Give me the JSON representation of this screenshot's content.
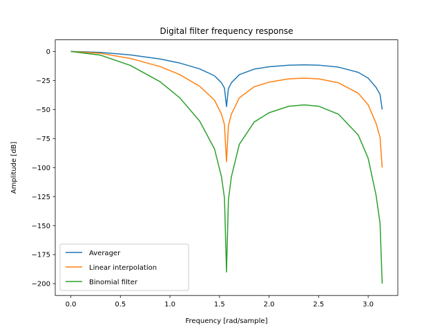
{
  "chart_data": {
    "type": "line",
    "title": "Digital filter frequency response",
    "xlabel": "Frequency [rad/sample]",
    "ylabel": "Amplitude [dB]",
    "xlim": [
      -0.157,
      3.299
    ],
    "ylim": [
      -210.2,
      10.0
    ],
    "xticks": [
      0.0,
      0.5,
      1.0,
      1.5,
      2.0,
      2.5,
      3.0
    ],
    "xtick_labels": [
      "0.0",
      "0.5",
      "1.0",
      "1.5",
      "2.0",
      "2.5",
      "3.0"
    ],
    "yticks": [
      0,
      -25,
      -50,
      -75,
      -100,
      -125,
      -150,
      -175,
      -200
    ],
    "ytick_labels": [
      "0",
      "−25",
      "−50",
      "−75",
      "−100",
      "−125",
      "−150",
      "−175",
      "−200"
    ],
    "grid": false,
    "legend_position": "lower-left",
    "series": [
      {
        "name": "Averager",
        "color": "#1f77b4",
        "x": [
          0.0,
          0.3,
          0.6,
          0.9,
          1.1,
          1.3,
          1.45,
          1.52,
          1.55,
          1.5708,
          1.59,
          1.62,
          1.7,
          1.85,
          2.0,
          2.2,
          2.356,
          2.5,
          2.7,
          2.9,
          3.0,
          3.08,
          3.12,
          3.1416
        ],
        "y": [
          0.0,
          -0.8,
          -3.0,
          -6.5,
          -10.0,
          -15.0,
          -21.0,
          -27.0,
          -31.5,
          -47.5,
          -32.0,
          -27.0,
          -20.0,
          -15.2,
          -13.2,
          -11.8,
          -11.5,
          -11.8,
          -13.5,
          -18.0,
          -23.0,
          -31.0,
          -37.0,
          -50.0
        ]
      },
      {
        "name": "Linear interpolation",
        "color": "#ff7f0e",
        "x": [
          0.0,
          0.3,
          0.6,
          0.9,
          1.1,
          1.3,
          1.45,
          1.52,
          1.55,
          1.5708,
          1.59,
          1.62,
          1.7,
          1.85,
          2.0,
          2.2,
          2.356,
          2.5,
          2.7,
          2.9,
          3.0,
          3.08,
          3.12,
          3.1416
        ],
        "y": [
          0.0,
          -1.6,
          -6.0,
          -13.0,
          -20.0,
          -30.0,
          -42.0,
          -54.0,
          -63.0,
          -95.0,
          -64.0,
          -54.0,
          -40.0,
          -30.4,
          -26.4,
          -23.6,
          -23.0,
          -23.6,
          -27.0,
          -36.0,
          -46.0,
          -62.0,
          -74.0,
          -100.0
        ]
      },
      {
        "name": "Binomial filter",
        "color": "#2ca02c",
        "x": [
          0.0,
          0.3,
          0.6,
          0.9,
          1.1,
          1.3,
          1.45,
          1.52,
          1.55,
          1.5708,
          1.59,
          1.62,
          1.7,
          1.85,
          2.0,
          2.2,
          2.356,
          2.5,
          2.7,
          2.9,
          3.0,
          3.08,
          3.12,
          3.1416
        ],
        "y": [
          0.0,
          -3.2,
          -12.0,
          -26.0,
          -40.0,
          -60.0,
          -84.0,
          -108.0,
          -126.0,
          -190.0,
          -128.0,
          -108.0,
          -80.0,
          -60.8,
          -52.8,
          -47.2,
          -46.0,
          -47.2,
          -54.0,
          -72.0,
          -92.0,
          -124.0,
          -148.0,
          -200.0
        ]
      }
    ]
  }
}
